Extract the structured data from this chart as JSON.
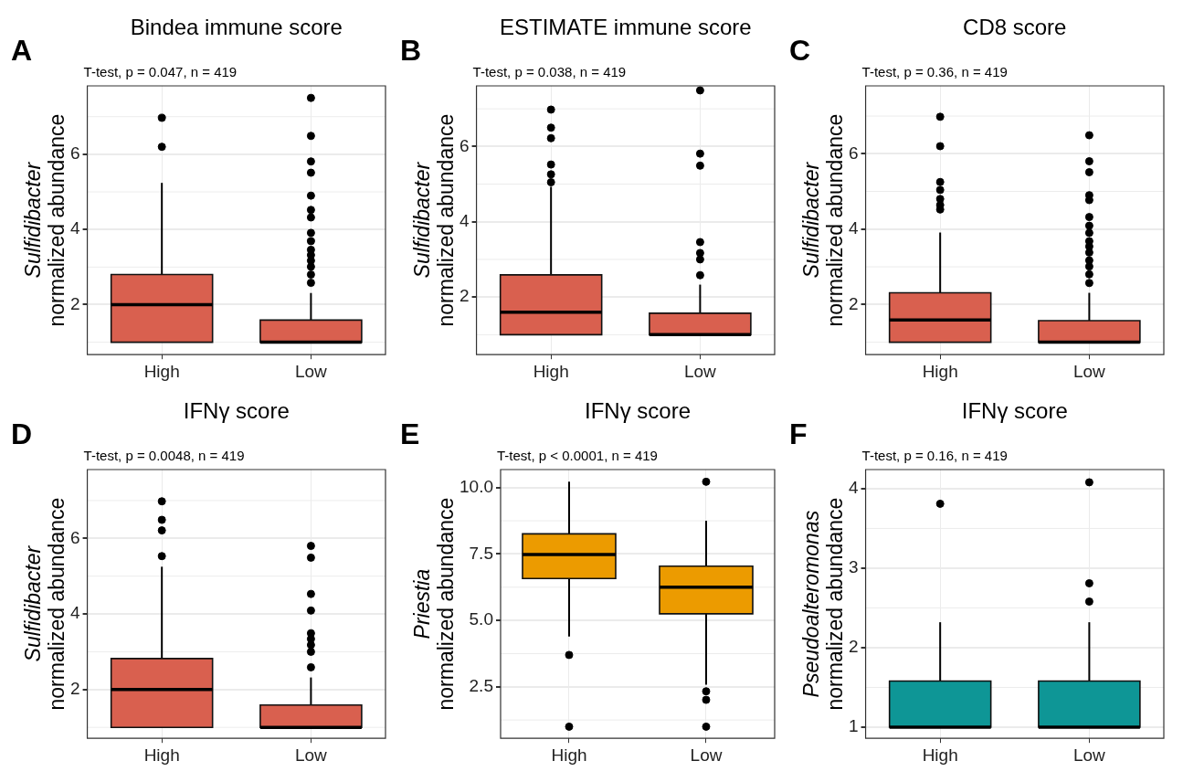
{
  "chart_data": [
    {
      "type": "box",
      "title": "Bindea immune score",
      "subtitle": "T-test, p = 0.047, n = 419",
      "annotations": [
        "A"
      ],
      "ylabel": "Sulfidibacter\nnormalized abundance",
      "categories": [
        "High",
        "Low"
      ],
      "ylim": [
        0.67,
        7.82
      ],
      "yticks": [
        2,
        4,
        6
      ],
      "grid": true,
      "series": [
        {
          "color": "#d9604f",
          "boxes": [
            {
              "low": 1,
              "q1": 1,
              "median": 2,
              "q3": 2.8,
              "high": 5.24,
              "outliers": [
                6.97,
                6.2
              ]
            },
            {
              "low": 1,
              "q1": 1,
              "median": 1,
              "q3": 1.59,
              "high": 2.31,
              "outliers": [
                7.5,
                6.49,
                5.81,
                5.51,
                4.9,
                4.52,
                4.32,
                3.91,
                3.69,
                3.46,
                3.32,
                3.17,
                3.01,
                2.8,
                2.58
              ]
            }
          ]
        }
      ]
    },
    {
      "type": "box",
      "title": "ESTIMATE immune score",
      "subtitle": "T-test, p = 0.038, n = 419",
      "annotations": [
        "B"
      ],
      "ylabel": "Sulfidibacter\nnormalized abundance",
      "categories": [
        "High",
        "Low"
      ],
      "ylim": [
        0.47,
        7.61
      ],
      "yticks": [
        2,
        4,
        6
      ],
      "grid": true,
      "series": [
        {
          "color": "#d9604f",
          "boxes": [
            {
              "low": 1,
              "q1": 1,
              "median": 1.6,
              "q3": 2.59,
              "high": 4.93,
              "outliers": [
                6.98,
                6.5,
                6.22,
                5.52,
                5.26,
                5.05
              ]
            },
            {
              "low": 1,
              "q1": 1,
              "median": 1,
              "q3": 1.57,
              "high": 2.33,
              "outliers": [
                7.49,
                5.81,
                5.49,
                3.46,
                3.17,
                3.0,
                2.58
              ]
            }
          ]
        }
      ]
    },
    {
      "type": "box",
      "title": "CD8 score",
      "subtitle": "T-test, p = 0.36, n = 419",
      "annotations": [
        "C"
      ],
      "ylabel": "Sulfidibacter\nnormalized abundance",
      "categories": [
        "High",
        "Low"
      ],
      "ylim": [
        0.67,
        7.8
      ],
      "yticks": [
        2,
        4,
        6
      ],
      "grid": true,
      "series": [
        {
          "color": "#d9604f",
          "boxes": [
            {
              "low": 1,
              "q1": 1,
              "median": 1.59,
              "q3": 2.31,
              "high": 3.91,
              "outliers": [
                6.98,
                6.2,
                5.25,
                5.04,
                4.8,
                4.64,
                4.52
              ]
            },
            {
              "low": 1,
              "q1": 1,
              "median": 1,
              "q3": 1.57,
              "high": 2.31,
              "outliers": [
                6.49,
                5.8,
                5.51,
                4.9,
                4.77,
                4.32,
                4.09,
                3.9,
                3.68,
                3.54,
                3.38,
                3.17,
                3.01,
                2.8,
                2.57
              ]
            }
          ]
        }
      ]
    },
    {
      "type": "box",
      "title": "IFNγ score",
      "subtitle": "T-test, p = 0.0048, n = 419",
      "annotations": [
        "D"
      ],
      "ylabel": "Sulfidibacter\nnormalized abundance",
      "categories": [
        "High",
        "Low"
      ],
      "ylim": [
        0.71,
        7.82
      ],
      "yticks": [
        2,
        4,
        6
      ],
      "grid": true,
      "series": [
        {
          "color": "#d9604f",
          "boxes": [
            {
              "low": 1,
              "q1": 1,
              "median": 2,
              "q3": 2.82,
              "high": 5.25,
              "outliers": [
                6.98,
                6.49,
                6.21,
                5.53
              ]
            },
            {
              "low": 1,
              "q1": 1,
              "median": 1,
              "q3": 1.59,
              "high": 2.32,
              "outliers": [
                5.8,
                5.49,
                4.53,
                4.09,
                3.49,
                3.34,
                3.18,
                3.0,
                2.59
              ]
            }
          ]
        }
      ]
    },
    {
      "type": "box",
      "title": "IFNγ score",
      "subtitle": "T-test, p < 0.0001, n = 419",
      "annotations": [
        "E"
      ],
      "ylabel": "Priestia\nnormalized abundance",
      "categories": [
        "High",
        "Low"
      ],
      "ylim": [
        0.56,
        10.68
      ],
      "yticks": [
        {
          "value": 2.5,
          "label": "2.5"
        },
        {
          "value": 5,
          "label": "5.0"
        },
        {
          "value": 7.5,
          "label": "7.5"
        },
        {
          "value": 10,
          "label": "10.0"
        }
      ],
      "grid": true,
      "series": [
        {
          "color": "#ec9b00",
          "boxes": [
            {
              "low": 4.39,
              "q1": 6.58,
              "median": 7.48,
              "q3": 8.26,
              "high": 10.22,
              "outliers": [
                3.7,
                1.0
              ]
            },
            {
              "low": 2.58,
              "q1": 5.25,
              "median": 6.25,
              "q3": 7.04,
              "high": 8.75,
              "outliers": [
                10.22,
                2.33,
                2.01,
                1.0
              ]
            }
          ]
        }
      ]
    },
    {
      "type": "box",
      "title": "IFNγ score",
      "subtitle": "T-test, p = 0.16, n = 419",
      "annotations": [
        "F"
      ],
      "ylabel": "Pseudoalteromonas\nnormalized abundance",
      "categories": [
        "High",
        "Low"
      ],
      "ylim": [
        0.86,
        4.24
      ],
      "yticks": [
        1,
        2,
        3,
        4
      ],
      "grid": true,
      "series": [
        {
          "color": "#0e9696",
          "boxes": [
            {
              "low": 1,
              "q1": 1,
              "median": 1,
              "q3": 1.58,
              "high": 2.32,
              "outliers": [
                3.81
              ]
            },
            {
              "low": 1,
              "q1": 1,
              "median": 1,
              "q3": 1.58,
              "high": 2.32,
              "outliers": [
                4.08,
                2.81,
                2.58
              ]
            }
          ]
        }
      ]
    }
  ]
}
